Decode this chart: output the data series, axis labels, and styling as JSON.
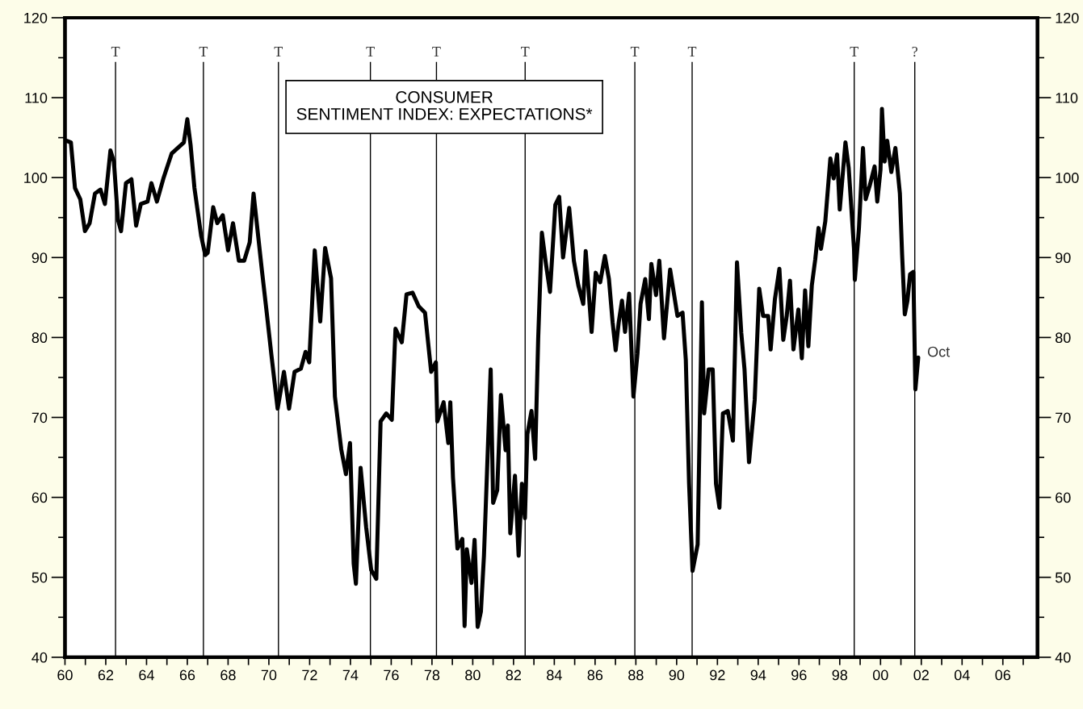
{
  "chart_data": {
    "type": "line",
    "title": "CONSUMER\nSENTIMENT INDEX: EXPECTATIONS*",
    "xlim": [
      1960,
      2007.7
    ],
    "ylim": [
      40,
      120
    ],
    "xticks": [
      {
        "value": 1960,
        "label": "60"
      },
      {
        "value": 1962,
        "label": "62"
      },
      {
        "value": 1964,
        "label": "64"
      },
      {
        "value": 1966,
        "label": "66"
      },
      {
        "value": 1968,
        "label": "68"
      },
      {
        "value": 1970,
        "label": "70"
      },
      {
        "value": 1972,
        "label": "72"
      },
      {
        "value": 1974,
        "label": "74"
      },
      {
        "value": 1976,
        "label": "76"
      },
      {
        "value": 1978,
        "label": "78"
      },
      {
        "value": 1980,
        "label": "80"
      },
      {
        "value": 1982,
        "label": "82"
      },
      {
        "value": 1984,
        "label": "84"
      },
      {
        "value": 1986,
        "label": "86"
      },
      {
        "value": 1988,
        "label": "88"
      },
      {
        "value": 1990,
        "label": "90"
      },
      {
        "value": 1992,
        "label": "92"
      },
      {
        "value": 1994,
        "label": "94"
      },
      {
        "value": 1996,
        "label": "96"
      },
      {
        "value": 1998,
        "label": "98"
      },
      {
        "value": 2000,
        "label": "00"
      },
      {
        "value": 2002,
        "label": "02"
      },
      {
        "value": 2004,
        "label": "04"
      },
      {
        "value": 2006,
        "label": "06"
      },
      {
        "value": 1961,
        "label": null
      },
      {
        "value": 1963,
        "label": null
      },
      {
        "value": 1965,
        "label": null
      },
      {
        "value": 1967,
        "label": null
      },
      {
        "value": 1969,
        "label": null
      },
      {
        "value": 1971,
        "label": null
      },
      {
        "value": 1973,
        "label": null
      },
      {
        "value": 1975,
        "label": null
      },
      {
        "value": 1977,
        "label": null
      },
      {
        "value": 1979,
        "label": null
      },
      {
        "value": 1981,
        "label": null
      },
      {
        "value": 1983,
        "label": null
      },
      {
        "value": 1985,
        "label": null
      },
      {
        "value": 1987,
        "label": null
      },
      {
        "value": 1989,
        "label": null
      },
      {
        "value": 1991,
        "label": null
      },
      {
        "value": 1993,
        "label": null
      },
      {
        "value": 1995,
        "label": null
      },
      {
        "value": 1997,
        "label": null
      },
      {
        "value": 1999,
        "label": null
      },
      {
        "value": 2001,
        "label": null
      },
      {
        "value": 2003,
        "label": null
      },
      {
        "value": 2005,
        "label": null
      },
      {
        "value": 2007,
        "label": null
      }
    ],
    "yticks": [
      40,
      50,
      60,
      70,
      80,
      90,
      100,
      110,
      120,
      {
        "value": 45,
        "label": null
      },
      {
        "value": 55,
        "label": null
      },
      {
        "value": 65,
        "label": null
      },
      {
        "value": 75,
        "label": null
      },
      {
        "value": 85,
        "label": null
      },
      {
        "value": 95,
        "label": null
      },
      {
        "value": 105,
        "label": null
      },
      {
        "value": 115,
        "label": null
      }
    ],
    "y2lim": [
      40,
      120
    ],
    "y2ticks": [
      40,
      50,
      60,
      70,
      80,
      90,
      100,
      110,
      120,
      {
        "value": 45,
        "label": null
      },
      {
        "value": 55,
        "label": null
      },
      {
        "value": 65,
        "label": null
      },
      {
        "value": 75,
        "label": null
      },
      {
        "value": 85,
        "label": null
      },
      {
        "value": 95,
        "label": null
      },
      {
        "value": 105,
        "label": null
      },
      {
        "value": 115,
        "label": null
      }
    ],
    "grid": false,
    "legend": false,
    "marker": "none",
    "line_style": "solid",
    "x": [
      1960.09,
      1960.29,
      1960.49,
      1960.75,
      1960.98,
      1961.21,
      1961.47,
      1961.74,
      1961.96,
      1962.23,
      1962.4,
      1962.6,
      1962.75,
      1962.99,
      1963.26,
      1963.49,
      1963.72,
      1964.05,
      1964.24,
      1964.51,
      1964.84,
      1965.23,
      1965.83,
      1966.0,
      1966.16,
      1966.35,
      1966.68,
      1966.88,
      1967.0,
      1967.27,
      1967.47,
      1967.74,
      1968.0,
      1968.24,
      1968.53,
      1968.79,
      1969.06,
      1969.25,
      1969.39,
      1969.65,
      1969.9,
      1970.13,
      1970.43,
      1970.74,
      1970.99,
      1971.26,
      1971.57,
      1971.8,
      1971.98,
      1972.25,
      1972.52,
      1972.76,
      1973.05,
      1973.24,
      1973.55,
      1973.78,
      1973.98,
      1974.16,
      1974.27,
      1974.5,
      1974.77,
      1975.02,
      1975.27,
      1975.48,
      1975.76,
      1976.03,
      1976.21,
      1976.52,
      1976.75,
      1977.05,
      1977.35,
      1977.66,
      1977.96,
      1978.19,
      1978.26,
      1978.57,
      1978.8,
      1978.9,
      1979.03,
      1979.25,
      1979.49,
      1979.6,
      1979.71,
      1979.94,
      1980.09,
      1980.24,
      1980.4,
      1980.55,
      1980.7,
      1980.88,
      1981.0,
      1981.2,
      1981.38,
      1981.61,
      1981.72,
      1981.84,
      1982.07,
      1982.25,
      1982.41,
      1982.56,
      1982.68,
      1982.88,
      1983.06,
      1983.21,
      1983.39,
      1983.59,
      1983.79,
      1984.05,
      1984.24,
      1984.43,
      1984.73,
      1984.96,
      1985.18,
      1985.42,
      1985.54,
      1985.83,
      1986.03,
      1986.25,
      1986.48,
      1986.68,
      1986.86,
      1987.01,
      1987.16,
      1987.32,
      1987.47,
      1987.67,
      1987.88,
      1988.08,
      1988.23,
      1988.46,
      1988.64,
      1988.76,
      1988.99,
      1989.15,
      1989.38,
      1989.68,
      1990.04,
      1990.29,
      1990.45,
      1990.61,
      1990.78,
      1991.03,
      1991.24,
      1991.35,
      1991.57,
      1991.77,
      1991.93,
      1992.1,
      1992.27,
      1992.51,
      1992.76,
      1992.96,
      1993.17,
      1993.33,
      1993.55,
      1993.83,
      1994.05,
      1994.24,
      1994.49,
      1994.61,
      1994.82,
      1995.04,
      1995.23,
      1995.4,
      1995.56,
      1995.73,
      1995.97,
      1996.14,
      1996.3,
      1996.46,
      1996.63,
      1996.8,
      1996.96,
      1997.08,
      1997.29,
      1997.54,
      1997.7,
      1997.87,
      1998.0,
      1998.28,
      1998.44,
      1998.7,
      1998.74,
      1998.94,
      1999.14,
      1999.27,
      1999.47,
      1999.71,
      1999.84,
      2000.0,
      2000.07,
      2000.2,
      2000.33,
      2000.53,
      2000.73,
      2000.82,
      2000.95,
      2001.06,
      2001.19,
      2001.32,
      2001.45,
      2001.61,
      2001.71,
      2001.85
    ],
    "series": [
      {
        "color": "#000000",
        "values": [
          104.6,
          104.4,
          98.7,
          97.3,
          93.3,
          94.3,
          98.0,
          98.5,
          96.7,
          103.4,
          102.0,
          94.7,
          93.3,
          99.3,
          99.8,
          94.0,
          96.7,
          97.0,
          99.3,
          97.0,
          100.0,
          103.0,
          104.4,
          107.3,
          104.1,
          98.7,
          92.7,
          90.3,
          90.6,
          96.3,
          94.3,
          95.3,
          90.9,
          94.3,
          89.6,
          89.6,
          91.9,
          98.0,
          94.7,
          88.6,
          83.0,
          77.7,
          71.1,
          75.7,
          71.1,
          75.7,
          76.1,
          78.2,
          76.9,
          90.9,
          82.0,
          91.2,
          87.4,
          72.6,
          66.0,
          62.9,
          66.8,
          51.7,
          49.2,
          63.7,
          56.3,
          50.9,
          49.8,
          69.5,
          70.5,
          69.7,
          81.1,
          79.4,
          85.4,
          85.6,
          83.9,
          83.1,
          75.7,
          76.9,
          69.5,
          71.9,
          66.8,
          71.9,
          62.5,
          53.6,
          54.8,
          43.9,
          53.5,
          49.3,
          54.7,
          43.8,
          45.7,
          52.7,
          63.2,
          76.0,
          59.3,
          60.9,
          72.8,
          65.9,
          69.0,
          55.5,
          62.7,
          52.7,
          61.7,
          57.4,
          67.9,
          70.8,
          64.8,
          79.9,
          93.1,
          89.2,
          85.7,
          96.6,
          97.6,
          90.0,
          96.2,
          89.6,
          86.5,
          84.2,
          90.8,
          80.7,
          88.1,
          86.9,
          90.2,
          87.3,
          81.9,
          78.4,
          81.9,
          84.6,
          80.7,
          85.5,
          72.6,
          78.0,
          84.2,
          87.3,
          82.3,
          89.2,
          85.3,
          89.6,
          79.9,
          88.5,
          82.7,
          83.1,
          77.2,
          61.7,
          50.8,
          54.1,
          84.4,
          70.5,
          76.0,
          76.0,
          61.7,
          58.7,
          70.5,
          70.8,
          67.1,
          89.4,
          80.6,
          76.0,
          64.4,
          72.2,
          86.1,
          82.7,
          82.7,
          78.5,
          84.8,
          88.6,
          79.7,
          82.7,
          87.1,
          78.5,
          83.5,
          77.4,
          85.9,
          78.9,
          86.5,
          89.8,
          93.7,
          91.1,
          94.5,
          102.4,
          99.9,
          102.9,
          96.0,
          104.4,
          101.2,
          91.1,
          87.2,
          93.6,
          103.7,
          97.3,
          99.0,
          101.4,
          97.0,
          101.0,
          108.6,
          102.0,
          104.6,
          100.7,
          103.7,
          101.4,
          98.0,
          90.3,
          82.9,
          84.6,
          87.9,
          88.2,
          73.5,
          77.5
        ]
      }
    ],
    "ref_lines": [
      {
        "axis": "x",
        "value": 1962.48,
        "label": "T",
        "color": "#000000"
      },
      {
        "axis": "x",
        "value": 1966.79,
        "label": "T",
        "color": "#000000"
      },
      {
        "axis": "x",
        "value": 1970.47,
        "label": "T",
        "color": "#000000"
      },
      {
        "axis": "x",
        "value": 1974.98,
        "label": "T",
        "color": "#000000"
      },
      {
        "axis": "x",
        "value": 1978.22,
        "label": "T",
        "color": "#000000"
      },
      {
        "axis": "x",
        "value": 1982.57,
        "label": "T",
        "color": "#000000"
      },
      {
        "axis": "x",
        "value": 1987.95,
        "label": "T",
        "color": "#000000"
      },
      {
        "axis": "x",
        "value": 1990.76,
        "label": "T",
        "color": "#000000"
      },
      {
        "axis": "x",
        "value": 1998.71,
        "label": "T",
        "color": "#000000"
      },
      {
        "axis": "x",
        "value": 2001.68,
        "label": "?",
        "color": "#000000"
      }
    ],
    "annotations": [
      {
        "text": "Oct",
        "x": 2001.85,
        "y": 77.5
      }
    ]
  }
}
